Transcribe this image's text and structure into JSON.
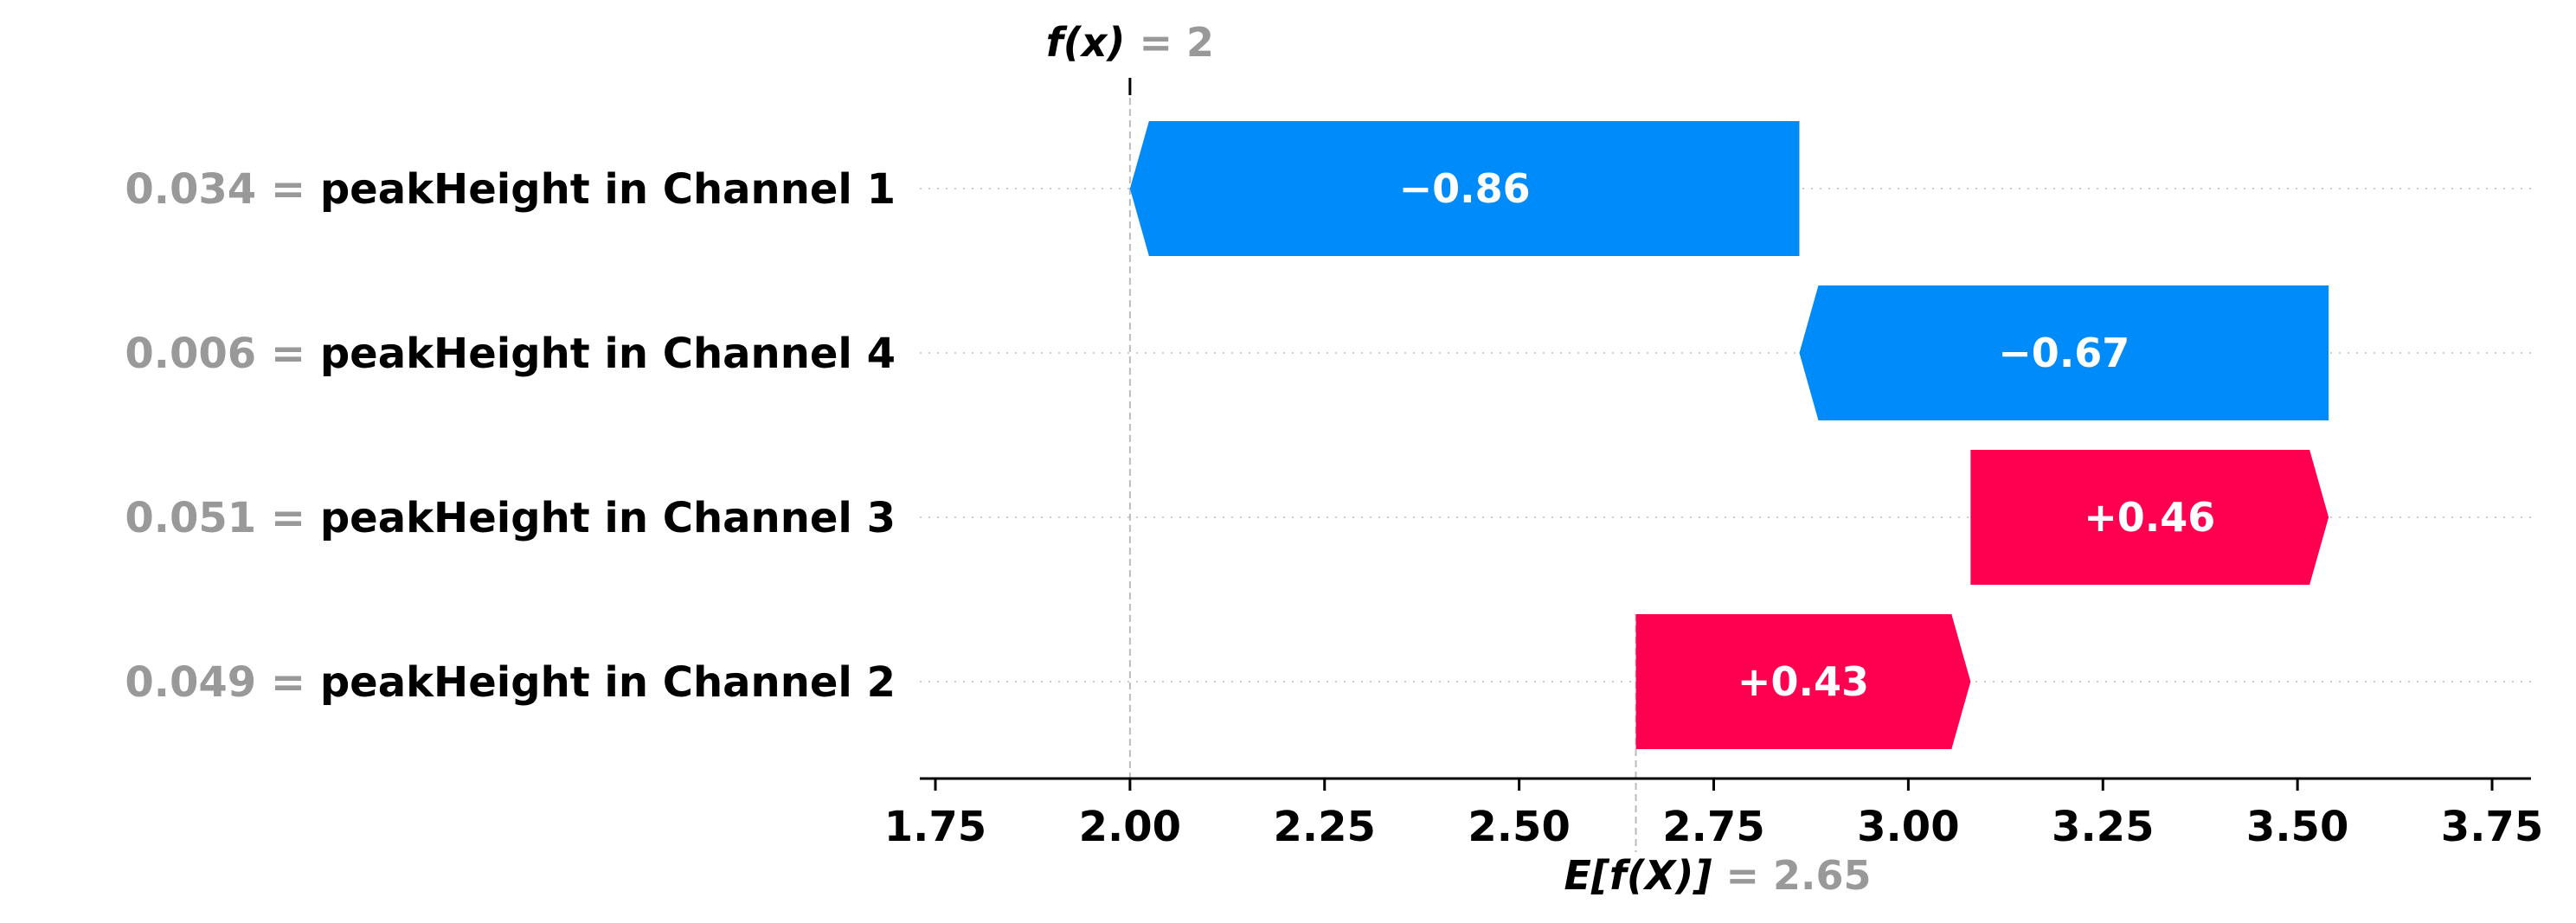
{
  "chart_data": {
    "type": "waterfall",
    "base_value": 2.65,
    "output_value": 2,
    "xlim": [
      1.73,
      3.8
    ],
    "x_ticks": [
      1.75,
      2.0,
      2.25,
      2.5,
      2.75,
      3.0,
      3.25,
      3.5,
      3.75
    ],
    "x_tick_labels": [
      "1.75",
      "2.00",
      "2.25",
      "2.50",
      "2.75",
      "3.00",
      "3.25",
      "3.50",
      "3.75"
    ],
    "features": [
      {
        "value_text": "0.034 =",
        "name": "peakHeight in Channel 1",
        "start": 2.86,
        "end": 2.0,
        "contribution": -0.86,
        "label": "−0.86"
      },
      {
        "value_text": "0.006 =",
        "name": "peakHeight in Channel 4",
        "start": 3.54,
        "end": 2.86,
        "contribution": -0.67,
        "label": "−0.67"
      },
      {
        "value_text": "0.051 =",
        "name": "peakHeight in Channel 3",
        "start": 3.08,
        "end": 3.54,
        "contribution": 0.46,
        "label": "+0.46"
      },
      {
        "value_text": "0.049 =",
        "name": "peakHeight in Channel 2",
        "start": 2.65,
        "end": 3.08,
        "contribution": 0.43,
        "label": "+0.43"
      }
    ],
    "top_annotation": {
      "main": "f(x)",
      "value": " = 2"
    },
    "bottom_annotation": {
      "main": "E[f(X)]",
      "value": " = 2.65"
    },
    "colors": {
      "positive": "#ff0051",
      "negative": "#008bfb",
      "axis": "#000000",
      "guide": "#bbbbbb",
      "value_text": "#999999"
    }
  }
}
